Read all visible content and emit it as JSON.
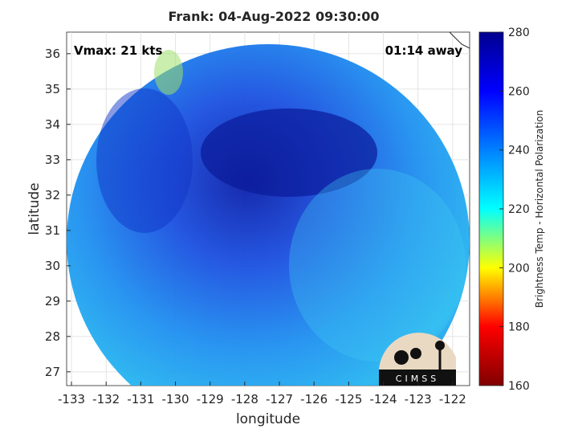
{
  "chart_data": {
    "type": "image",
    "title": "Frank: 04-Aug-2022 09:30:00",
    "annotations": [
      "Vmax: 21 kts",
      "01:14 away"
    ],
    "x_label": "longitude",
    "y_label": "latitude",
    "xlim": [
      -133.14,
      -121.51
    ],
    "xticks": [
      -133,
      -132,
      -131,
      -130,
      -129,
      -128,
      -127,
      -126,
      -125,
      -124,
      -123,
      -122
    ],
    "ylim": [
      26.61,
      36.61
    ],
    "yticks": [
      27,
      28,
      29,
      30,
      31,
      32,
      33,
      34,
      35,
      36
    ],
    "grid": true,
    "colorbar": {
      "label": "Brightness Temp - Horizontal Polarization",
      "lim": [
        160,
        280
      ],
      "ticks": [
        160,
        180,
        200,
        220,
        240,
        260,
        280
      ],
      "colormap": [
        "#7f0000",
        "#ff0000",
        "#ffff00",
        "#00ffff",
        "#0080ff",
        "#0000ff",
        "#00008f"
      ]
    },
    "logo": "CIMSS"
  }
}
